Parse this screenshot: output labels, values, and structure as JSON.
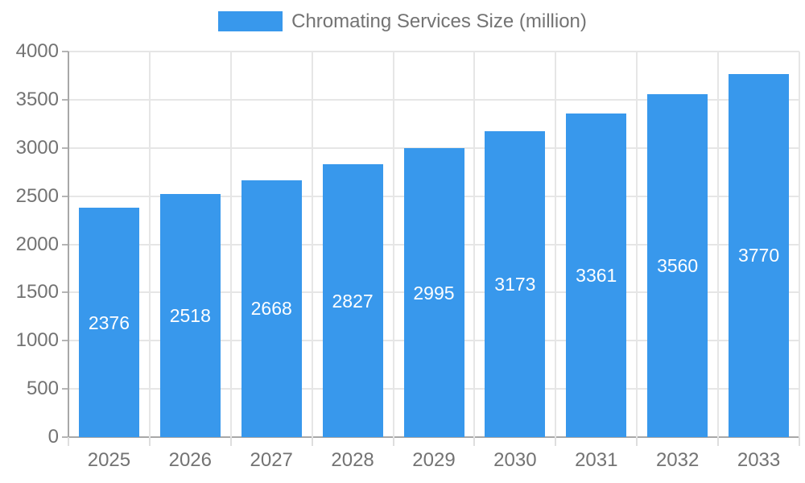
{
  "chart_data": {
    "type": "bar",
    "title": "",
    "legend": {
      "label": "Chromating Services Size (million)",
      "position": "top"
    },
    "categories": [
      "2025",
      "2026",
      "2027",
      "2028",
      "2029",
      "2030",
      "2031",
      "2032",
      "2033"
    ],
    "series": [
      {
        "name": "Chromating Services Size (million)",
        "values": [
          2376,
          2518,
          2668,
          2827,
          2995,
          3173,
          3361,
          3560,
          3770
        ]
      }
    ],
    "value_labels_shown": true,
    "xlabel": "",
    "ylabel": "",
    "ylim": [
      0,
      4000
    ],
    "yticks": [
      0,
      500,
      1000,
      1500,
      2000,
      2500,
      3000,
      3500,
      4000
    ],
    "grid": true,
    "colors": {
      "bar": "#3898ec",
      "grid": "#e6e6e6",
      "axis": "#a8a8a8",
      "tick": "#b5b5b5",
      "boundary_tick": "#dedede",
      "text": "#737373",
      "value_label": "#ffffff",
      "background": "#ffffff"
    }
  }
}
